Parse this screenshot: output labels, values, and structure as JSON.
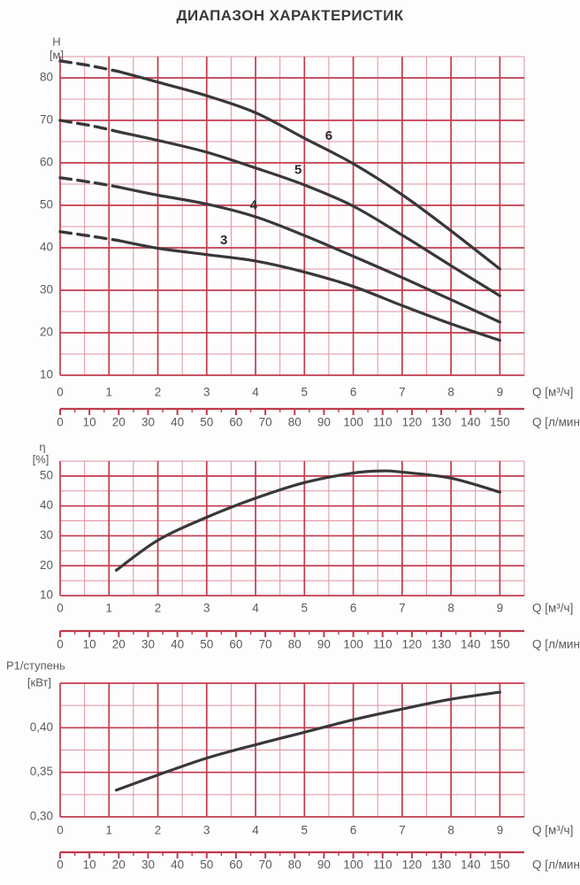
{
  "title": "ДИАПАЗОН ХАРАКТЕРИСТИК",
  "colors": {
    "grid_major": "#c23b4d",
    "grid_minor": "#e0929e",
    "axis_line": "#c23b4d",
    "curve": "#38383a",
    "tick_text": "#5a5b5e",
    "curve_label": "#2b2b2d",
    "title_text": "#3a3a3c"
  },
  "chart_data": [
    {
      "type": "line",
      "name": "head-flow-curves",
      "y_label_lines": [
        "H",
        "[м]"
      ],
      "x_label": "Q [м³/ч]",
      "x2_label": "Q [л/мин]",
      "x_ticks": [
        "0",
        "1",
        "2",
        "3",
        "4",
        "5",
        "6",
        "7",
        "8",
        "9"
      ],
      "x2_ticks": [
        "0",
        "10",
        "20",
        "30",
        "40",
        "50",
        "60",
        "70",
        "80",
        "90",
        "100",
        "110",
        "120",
        "130",
        "140",
        "150"
      ],
      "x_range": [
        0,
        9.5
      ],
      "x_major": 1,
      "x_minor": 0.5,
      "x2_range": [
        0,
        150
      ],
      "x2_major": 10,
      "x2_minor": 5,
      "y_range": [
        10,
        85
      ],
      "y_major": 10,
      "y_minor": 5,
      "y_ticks": [
        {
          "v": 80,
          "label": "80"
        },
        {
          "v": 70,
          "label": "70"
        },
        {
          "v": 60,
          "label": "60"
        },
        {
          "v": 50,
          "label": "50"
        },
        {
          "v": 40,
          "label": "40"
        },
        {
          "v": 30,
          "label": "30"
        },
        {
          "v": 20,
          "label": "20"
        },
        {
          "v": 10,
          "label": "10"
        }
      ],
      "series": [
        {
          "name": "6",
          "label": "6",
          "label_at": [
            5.5,
            66.2
          ],
          "dash_until": 1.2,
          "points": [
            [
              0,
              84
            ],
            [
              0.6,
              82.9
            ],
            [
              1.2,
              81.5
            ],
            [
              2,
              79
            ],
            [
              3,
              75.8
            ],
            [
              4,
              71.8
            ],
            [
              5,
              65.8
            ],
            [
              6,
              59.8
            ],
            [
              7,
              52.5
            ],
            [
              8,
              44
            ],
            [
              9,
              35
            ]
          ]
        },
        {
          "name": "5",
          "label": "5",
          "label_at": [
            4.87,
            58.2
          ],
          "dash_until": 1.2,
          "points": [
            [
              0,
              70
            ],
            [
              0.65,
              68.7
            ],
            [
              1.2,
              67.3
            ],
            [
              2,
              65.3
            ],
            [
              3,
              62.5
            ],
            [
              4,
              58.8
            ],
            [
              5,
              54.8
            ],
            [
              6,
              49.8
            ],
            [
              7,
              43
            ],
            [
              8,
              35.8
            ],
            [
              9,
              28.7
            ]
          ]
        },
        {
          "name": "4",
          "label": "4",
          "label_at": [
            3.96,
            49.9
          ],
          "dash_until": 1.2,
          "points": [
            [
              0,
              56.5
            ],
            [
              0.65,
              55.4
            ],
            [
              1.2,
              54.3
            ],
            [
              2,
              52.4
            ],
            [
              3,
              50.3
            ],
            [
              4,
              47.3
            ],
            [
              5,
              42.9
            ],
            [
              6,
              38
            ],
            [
              7,
              33
            ],
            [
              8,
              27.8
            ],
            [
              9,
              22.5
            ]
          ]
        },
        {
          "name": "3",
          "label": "3",
          "label_at": [
            3.35,
            41.7
          ],
          "dash_until": 1.2,
          "points": [
            [
              0,
              43.8
            ],
            [
              0.6,
              42.8
            ],
            [
              1.2,
              41.7
            ],
            [
              2,
              39.9
            ],
            [
              3,
              38.4
            ],
            [
              4,
              36.9
            ],
            [
              5,
              34.3
            ],
            [
              6,
              30.9
            ],
            [
              7,
              26.4
            ],
            [
              8,
              22.1
            ],
            [
              9,
              18.2
            ]
          ]
        }
      ]
    },
    {
      "type": "line",
      "name": "efficiency-curve",
      "y_label_lines": [
        "η",
        "[%]"
      ],
      "x_label": "Q [м³/ч]",
      "x2_label": "Q [л/мин]",
      "x_ticks": [
        "0",
        "1",
        "2",
        "3",
        "4",
        "5",
        "6",
        "7",
        "8",
        "9"
      ],
      "x2_ticks": [
        "0",
        "10",
        "20",
        "30",
        "40",
        "50",
        "60",
        "70",
        "80",
        "90",
        "100",
        "110",
        "120",
        "130",
        "140",
        "150"
      ],
      "x_range": [
        0,
        9.5
      ],
      "x_major": 1,
      "x_minor": 0.5,
      "x2_range": [
        0,
        150
      ],
      "x2_major": 10,
      "x2_minor": 5,
      "y_range": [
        10,
        55
      ],
      "y_major": 10,
      "y_minor": 5,
      "y_ticks": [
        {
          "v": 50,
          "label": "50"
        },
        {
          "v": 40,
          "label": "40"
        },
        {
          "v": 30,
          "label": "30"
        },
        {
          "v": 20,
          "label": "20"
        },
        {
          "v": 10,
          "label": "10"
        }
      ],
      "series": [
        {
          "name": "eta",
          "label": "",
          "dash_until": null,
          "points": [
            [
              1.15,
              18.5
            ],
            [
              2,
              28.5
            ],
            [
              3,
              36.2
            ],
            [
              4,
              42.6
            ],
            [
              5,
              47.8
            ],
            [
              6,
              51
            ],
            [
              6.6,
              51.7
            ],
            [
              7,
              51.3
            ],
            [
              8,
              49.3
            ],
            [
              9,
              44.6
            ]
          ]
        }
      ]
    },
    {
      "type": "line",
      "name": "power-per-stage-curve",
      "y_label_lines": [
        "P1/ступень",
        "[кВт]"
      ],
      "x_label": "Q [м³/ч]",
      "x2_label": "Q [л/мин]",
      "x_ticks": [
        "0",
        "1",
        "2",
        "3",
        "4",
        "5",
        "6",
        "7",
        "8",
        "9"
      ],
      "x2_ticks": [
        "0",
        "10",
        "20",
        "30",
        "40",
        "50",
        "60",
        "70",
        "80",
        "90",
        "100",
        "110",
        "120",
        "130",
        "140",
        "150"
      ],
      "x_range": [
        0,
        9.5
      ],
      "x_major": 1,
      "x_minor": 0.5,
      "x2_range": [
        0,
        150
      ],
      "x2_major": 10,
      "x2_minor": 5,
      "y_range": [
        0.3,
        0.45
      ],
      "y_major": 0.05,
      "y_minor": 0.025,
      "y_ticks": [
        {
          "v": 0.4,
          "label": "0,40"
        },
        {
          "v": 0.35,
          "label": "0,35"
        },
        {
          "v": 0.3,
          "label": "0,30"
        }
      ],
      "series": [
        {
          "name": "P1",
          "label": "",
          "dash_until": null,
          "points": [
            [
              1.15,
              0.33
            ],
            [
              2,
              0.347
            ],
            [
              3,
              0.366
            ],
            [
              4,
              0.381
            ],
            [
              5,
              0.395
            ],
            [
              6,
              0.409
            ],
            [
              7,
              0.421
            ],
            [
              8,
              0.432
            ],
            [
              9,
              0.44
            ]
          ]
        }
      ]
    }
  ]
}
